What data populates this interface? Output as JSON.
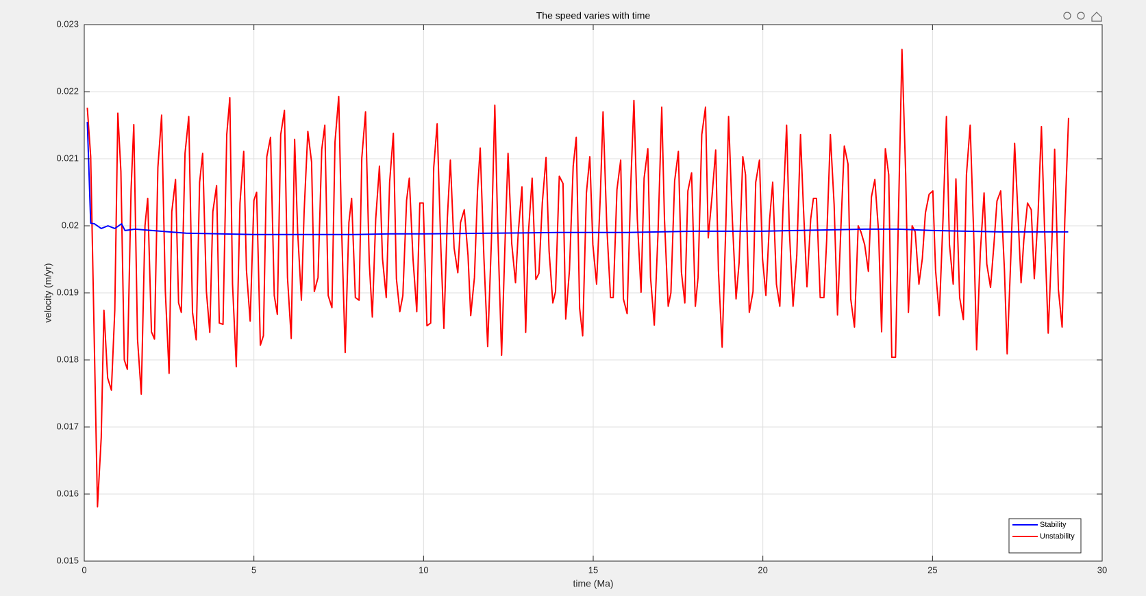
{
  "chart_data": {
    "type": "line",
    "title": "The speed varies with time",
    "xlabel": "time (Ma)",
    "ylabel": "velocity (m/yr)",
    "xlim": [
      0,
      30
    ],
    "xticks": [
      0,
      5,
      10,
      15,
      20,
      25,
      30
    ],
    "ylim": [
      0.015,
      0.023
    ],
    "yticks": [
      0.015,
      0.016,
      0.017,
      0.018,
      0.019,
      0.02,
      0.021,
      0.022,
      0.023
    ],
    "grid": true,
    "legend": "southeast",
    "series": [
      {
        "name": "Stability",
        "color": "#0000ff",
        "x": [
          0.09,
          0.19,
          0.3,
          0.5,
          0.7,
          0.9,
          1.1,
          1.2,
          1.5,
          2,
          3,
          4,
          5,
          6,
          7,
          8,
          9,
          10,
          12,
          14,
          16,
          18,
          20,
          22,
          23,
          24,
          25,
          26,
          27,
          28,
          29
        ],
        "values": [
          0.02155,
          0.02004,
          0.02003,
          0.01996,
          0.02,
          0.01996,
          0.02003,
          0.01993,
          0.01995,
          0.01993,
          0.01989,
          0.01988,
          0.01987,
          0.01987,
          0.01987,
          0.01987,
          0.01988,
          0.01988,
          0.01989,
          0.0199,
          0.0199,
          0.01992,
          0.01992,
          0.01994,
          0.01995,
          0.01995,
          0.01993,
          0.01992,
          0.01991,
          0.01991,
          0.01991
        ]
      },
      {
        "name": "Unstability",
        "color": "#ff0000",
        "x": [
          0.09,
          0.19,
          0.39,
          0.5,
          0.58,
          0.69,
          0.8,
          0.9,
          0.99,
          1.08,
          1.18,
          1.27,
          1.38,
          1.46,
          1.57,
          1.68,
          1.79,
          1.87,
          1.98,
          2.07,
          2.17,
          2.28,
          2.39,
          2.5,
          2.58,
          2.69,
          2.78,
          2.86,
          2.97,
          3.08,
          3.19,
          3.3,
          3.4,
          3.49,
          3.6,
          3.7,
          3.79,
          3.9,
          3.98,
          4.09,
          4.2,
          4.29,
          4.37,
          4.48,
          4.59,
          4.7,
          4.78,
          4.89,
          5,
          5.08,
          5.19,
          5.28,
          5.38,
          5.49,
          5.6,
          5.69,
          5.79,
          5.9,
          5.99,
          6.1,
          6.2,
          6.29,
          6.4,
          6.48,
          6.59,
          6.7,
          6.78,
          6.89,
          7,
          7.09,
          7.19,
          7.3,
          7.39,
          7.5,
          7.58,
          7.69,
          7.8,
          7.88,
          7.99,
          8.1,
          8.18,
          8.29,
          8.4,
          8.49,
          8.59,
          8.7,
          8.79,
          8.9,
          9,
          9.11,
          9.2,
          9.3,
          9.39,
          9.5,
          9.58,
          9.69,
          9.8,
          9.89,
          9.99,
          10.1,
          10.21,
          10.3,
          10.4,
          10.51,
          10.6,
          10.7,
          10.79,
          10.9,
          11.01,
          11.09,
          11.2,
          11.31,
          11.39,
          11.5,
          11.59,
          11.67,
          11.78,
          11.89,
          12,
          12.1,
          12.19,
          12.3,
          12.41,
          12.49,
          12.6,
          12.71,
          12.79,
          12.9,
          13.01,
          13.09,
          13.2,
          13.31,
          13.4,
          13.5,
          13.61,
          13.7,
          13.81,
          13.89,
          14,
          14.11,
          14.19,
          14.3,
          14.41,
          14.5,
          14.6,
          14.69,
          14.8,
          14.9,
          14.99,
          15.1,
          15.21,
          15.29,
          15.4,
          15.51,
          15.59,
          15.7,
          15.81,
          15.89,
          16,
          16.11,
          16.2,
          16.3,
          16.41,
          16.5,
          16.61,
          16.69,
          16.8,
          16.91,
          17.02,
          17.1,
          17.21,
          17.29,
          17.4,
          17.51,
          17.6,
          17.7,
          17.79,
          17.9,
          18.01,
          18.09,
          18.2,
          18.31,
          18.39,
          18.5,
          18.61,
          18.69,
          18.8,
          18.91,
          18.99,
          19.1,
          19.21,
          19.3,
          19.41,
          19.49,
          19.6,
          19.71,
          19.79,
          19.9,
          19.99,
          20.09,
          20.2,
          20.29,
          20.4,
          20.5,
          20.59,
          20.7,
          20.78,
          20.89,
          21,
          21.11,
          21.19,
          21.3,
          21.41,
          21.49,
          21.58,
          21.69,
          21.8,
          21.88,
          21.99,
          22.1,
          22.2,
          22.31,
          22.4,
          22.51,
          22.59,
          22.7,
          22.81,
          22.89,
          23,
          23.11,
          23.2,
          23.3,
          23.41,
          23.5,
          23.61,
          23.71,
          23.8,
          23.91,
          23.99,
          24.1,
          24.21,
          24.29,
          24.4,
          24.49,
          24.6,
          24.7,
          24.79,
          24.9,
          25.01,
          25.09,
          25.2,
          25.31,
          25.41,
          25.5,
          25.61,
          25.69,
          25.8,
          25.91,
          26,
          26.11,
          26.22,
          26.3,
          26.41,
          26.52,
          26.6,
          26.71,
          26.81,
          26.9,
          27.01,
          27.12,
          27.2,
          27.31,
          27.42,
          27.5,
          27.61,
          27.69,
          27.8,
          27.91,
          28,
          28.11,
          28.21,
          28.3,
          28.41,
          28.52,
          28.6,
          28.71,
          28.82,
          28.9,
          29.01
        ],
        "values": [
          0.02176,
          0.02103,
          0.01581,
          0.01684,
          0.01874,
          0.01773,
          0.01755,
          0.01874,
          0.02168,
          0.02081,
          0.018,
          0.01786,
          0.02054,
          0.02151,
          0.01831,
          0.01749,
          0.02,
          0.02041,
          0.01842,
          0.01831,
          0.02087,
          0.02165,
          0.01902,
          0.0178,
          0.02021,
          0.02069,
          0.01885,
          0.01871,
          0.02108,
          0.02163,
          0.01871,
          0.0183,
          0.02065,
          0.02108,
          0.01902,
          0.01841,
          0.02021,
          0.0206,
          0.01855,
          0.01853,
          0.02136,
          0.02191,
          0.01913,
          0.0179,
          0.02034,
          0.02111,
          0.01934,
          0.01858,
          0.02038,
          0.0205,
          0.01822,
          0.01836,
          0.02103,
          0.02132,
          0.01896,
          0.01868,
          0.02136,
          0.02172,
          0.01923,
          0.01832,
          0.02129,
          0.01991,
          0.01889,
          0.02021,
          0.02141,
          0.02095,
          0.01902,
          0.01923,
          0.02114,
          0.0215,
          0.01896,
          0.01878,
          0.02125,
          0.02193,
          0.02005,
          0.01811,
          0.02005,
          0.02041,
          0.01893,
          0.01889,
          0.02101,
          0.0217,
          0.01945,
          0.01864,
          0.0201,
          0.02089,
          0.01951,
          0.01893,
          0.02065,
          0.02138,
          0.01921,
          0.01872,
          0.01896,
          0.02038,
          0.02071,
          0.0195,
          0.01872,
          0.02034,
          0.02034,
          0.01851,
          0.01855,
          0.02087,
          0.02152,
          0.01967,
          0.01847,
          0.0201,
          0.02098,
          0.01967,
          0.0193,
          0.02005,
          0.02024,
          0.01956,
          0.01866,
          0.01923,
          0.02052,
          0.02116,
          0.01951,
          0.0182,
          0.01978,
          0.0218,
          0.01989,
          0.01807,
          0.01989,
          0.02108,
          0.01973,
          0.01915,
          0.01989,
          0.02058,
          0.01841,
          0.01989,
          0.02071,
          0.0192,
          0.01929,
          0.02034,
          0.02102,
          0.01962,
          0.01885,
          0.01902,
          0.02074,
          0.02063,
          0.01861,
          0.01934,
          0.02089,
          0.02132,
          0.01877,
          0.01836,
          0.02049,
          0.02103,
          0.01972,
          0.01913,
          0.02045,
          0.0217,
          0.02,
          0.01893,
          0.01893,
          0.02054,
          0.02098,
          0.01891,
          0.01869,
          0.02065,
          0.02187,
          0.0201,
          0.01901,
          0.02071,
          0.02115,
          0.01923,
          0.01852,
          0.01989,
          0.02177,
          0.0201,
          0.0188,
          0.019,
          0.02067,
          0.02111,
          0.01931,
          0.01885,
          0.02052,
          0.02079,
          0.0188,
          0.01923,
          0.02136,
          0.02177,
          0.01982,
          0.02043,
          0.02113,
          0.01934,
          0.01819,
          0.02003,
          0.02163,
          0.0201,
          0.01891,
          0.01945,
          0.02103,
          0.02076,
          0.01871,
          0.01902,
          0.02065,
          0.02098,
          0.01951,
          0.01896,
          0.0201,
          0.02065,
          0.01913,
          0.0188,
          0.02021,
          0.0215,
          0.01994,
          0.0188,
          0.01956,
          0.02136,
          0.02034,
          0.01909,
          0.0201,
          0.02041,
          0.02041,
          0.01893,
          0.01893,
          0.01978,
          0.02136,
          0.02032,
          0.01867,
          0.0201,
          0.02119,
          0.02092,
          0.01891,
          0.01849,
          0.02,
          0.01991,
          0.01972,
          0.01932,
          0.02043,
          0.02069,
          0.01991,
          0.01842,
          0.02115,
          0.02076,
          0.01804,
          0.01804,
          0.02,
          0.02263,
          0.02076,
          0.01871,
          0.02,
          0.01991,
          0.01913,
          0.01951,
          0.02019,
          0.02047,
          0.02052,
          0.01934,
          0.01866,
          0.0201,
          0.02163,
          0.01972,
          0.01913,
          0.0207,
          0.01893,
          0.0186,
          0.02076,
          0.0215,
          0.01978,
          0.01815,
          0.01961,
          0.02049,
          0.01943,
          0.01908,
          0.01972,
          0.02037,
          0.02052,
          0.01934,
          0.01809,
          0.01956,
          0.02123,
          0.02038,
          0.01915,
          0.01978,
          0.02034,
          0.02024,
          0.01921,
          0.02016,
          0.02148,
          0.02,
          0.0184,
          0.01978,
          0.02114,
          0.01905,
          0.01849,
          0.0201,
          0.02161
        ]
      }
    ]
  }
}
